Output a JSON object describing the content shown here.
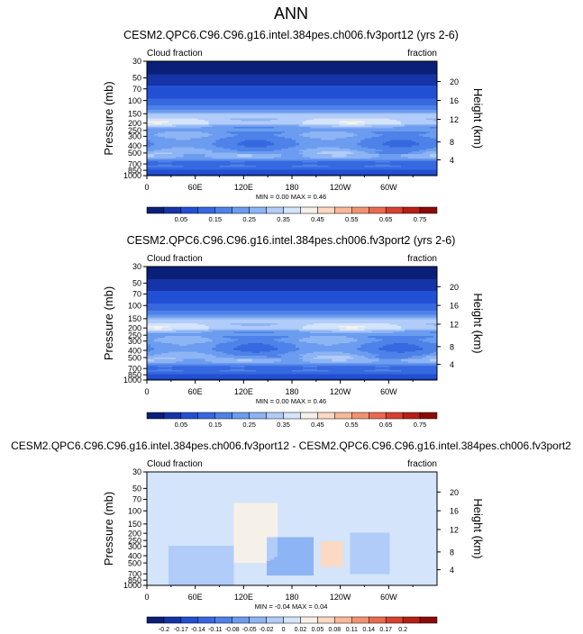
{
  "page_title": "ANN",
  "chart_data": [
    {
      "type": "heatmap",
      "title": "CESM2.QPC6.C96.C96.g16.intel.384pes.ch006.fv3port12 (yrs 2-6)",
      "left_label": "Cloud fraction",
      "right_label": "fraction",
      "ylabel": "Pressure (mb)",
      "ylabel_right": "Height (km)",
      "xticks": [
        "0",
        "60E",
        "120E",
        "180",
        "120W",
        "60W"
      ],
      "yticks": [
        "30",
        "50",
        "70",
        "100",
        "150",
        "200",
        "250",
        "300",
        "400",
        "500",
        "700",
        "850",
        "1000"
      ],
      "yticks_right": [
        "20",
        "16",
        "12",
        "8",
        "4"
      ],
      "minmax": "MIN =   0.00   MAX =   0.46",
      "colorbar_labels": [
        "0.05",
        "0.15",
        "0.25",
        "0.35",
        "0.45",
        "0.55",
        "0.65",
        "0.75"
      ],
      "colors": [
        "#0a1f78",
        "#1434a8",
        "#2250d4",
        "#3668e0",
        "#4e82e8",
        "#6b9cef",
        "#8db4f4",
        "#b1ccf8",
        "#d4e4fb",
        "#f6f1e8",
        "#fbd9c3",
        "#f8b899",
        "#f29273",
        "#e96a4f",
        "#d8412f",
        "#b81f14",
        "#8b0a08"
      ],
      "ylim": [
        30,
        1000
      ],
      "profile": [
        [
          30,
          0.0
        ],
        [
          40,
          0.02
        ],
        [
          55,
          0.04
        ],
        [
          85,
          0.08
        ],
        [
          100,
          0.12
        ],
        [
          120,
          0.16
        ],
        [
          140,
          0.22
        ],
        [
          150,
          0.3
        ],
        [
          180,
          0.34
        ],
        [
          200,
          0.36
        ],
        [
          220,
          0.26
        ],
        [
          250,
          0.2
        ],
        [
          290,
          0.24
        ],
        [
          330,
          0.2
        ],
        [
          380,
          0.18
        ],
        [
          420,
          0.2
        ],
        [
          470,
          0.24
        ],
        [
          510,
          0.26
        ],
        [
          540,
          0.28
        ],
        [
          580,
          0.26
        ],
        [
          620,
          0.2
        ],
        [
          650,
          0.14
        ],
        [
          700,
          0.13
        ],
        [
          750,
          0.15
        ],
        [
          800,
          0.12
        ],
        [
          850,
          0.1
        ],
        [
          890,
          0.08
        ],
        [
          930,
          0.06
        ],
        [
          970,
          0.04
        ],
        [
          1000,
          0.02
        ]
      ]
    },
    {
      "type": "heatmap",
      "title": "CESM2.QPC6.C96.C96.g16.intel.384pes.ch006.fv3port2 (yrs 2-6)",
      "left_label": "Cloud fraction",
      "right_label": "fraction",
      "ylabel": "Pressure (mb)",
      "ylabel_right": "Height (km)",
      "xticks": [
        "0",
        "60E",
        "120E",
        "180",
        "120W",
        "60W"
      ],
      "yticks": [
        "30",
        "50",
        "70",
        "100",
        "150",
        "200",
        "250",
        "300",
        "400",
        "500",
        "700",
        "850",
        "1000"
      ],
      "yticks_right": [
        "20",
        "16",
        "12",
        "8",
        "4"
      ],
      "minmax": "MIN =   0.00   MAX =   0.46",
      "colorbar_labels": [
        "0.05",
        "0.15",
        "0.25",
        "0.35",
        "0.45",
        "0.55",
        "0.65",
        "0.75"
      ],
      "colors": [
        "#0a1f78",
        "#1434a8",
        "#2250d4",
        "#3668e0",
        "#4e82e8",
        "#6b9cef",
        "#8db4f4",
        "#b1ccf8",
        "#d4e4fb",
        "#f6f1e8",
        "#fbd9c3",
        "#f8b899",
        "#f29273",
        "#e96a4f",
        "#d8412f",
        "#b81f14",
        "#8b0a08"
      ],
      "ylim": [
        30,
        1000
      ],
      "profile": [
        [
          30,
          0.0
        ],
        [
          40,
          0.02
        ],
        [
          55,
          0.04
        ],
        [
          85,
          0.08
        ],
        [
          100,
          0.12
        ],
        [
          120,
          0.16
        ],
        [
          140,
          0.22
        ],
        [
          150,
          0.3
        ],
        [
          180,
          0.34
        ],
        [
          200,
          0.36
        ],
        [
          220,
          0.26
        ],
        [
          250,
          0.2
        ],
        [
          290,
          0.24
        ],
        [
          330,
          0.2
        ],
        [
          380,
          0.18
        ],
        [
          420,
          0.2
        ],
        [
          470,
          0.24
        ],
        [
          510,
          0.26
        ],
        [
          540,
          0.28
        ],
        [
          580,
          0.26
        ],
        [
          620,
          0.2
        ],
        [
          650,
          0.14
        ],
        [
          700,
          0.13
        ],
        [
          750,
          0.15
        ],
        [
          800,
          0.12
        ],
        [
          850,
          0.1
        ],
        [
          890,
          0.08
        ],
        [
          930,
          0.06
        ],
        [
          970,
          0.04
        ],
        [
          1000,
          0.02
        ]
      ]
    },
    {
      "type": "heatmap",
      "title": "CESM2.QPC6.C96.C96.g16.intel.384pes.ch006.fv3port12 - CESM2.QPC6.C96.C96.g16.intel.384pes.ch006.fv3port2",
      "left_label": "Cloud fraction",
      "right_label": "fraction",
      "ylabel": "Pressure (mb)",
      "ylabel_right": "Height (km)",
      "xticks": [
        "0",
        "60E",
        "120E",
        "180",
        "120W",
        "60W"
      ],
      "yticks": [
        "30",
        "50",
        "70",
        "100",
        "150",
        "200",
        "250",
        "300",
        "400",
        "500",
        "700",
        "850",
        "1000"
      ],
      "yticks_right": [
        "20",
        "16",
        "12",
        "8",
        "4"
      ],
      "minmax": "MIN =  -0.04   MAX =   0.04",
      "colorbar_labels": [
        "-0.2",
        "-0.17",
        "-0.14",
        "-0.11",
        "-0.08",
        "-0.05",
        "-0.02",
        "0",
        "0.02",
        "0.05",
        "0.08",
        "0.11",
        "0.14",
        "0.17",
        "0.2"
      ],
      "colors": [
        "#0a1f78",
        "#1434a8",
        "#2250d4",
        "#3668e0",
        "#4e82e8",
        "#6b9cef",
        "#8db4f4",
        "#b1ccf8",
        "#d4e4fb",
        "#f6f1e8",
        "#fbd9c3",
        "#f8b899",
        "#f29273",
        "#e96a4f",
        "#d8412f",
        "#b81f14",
        "#8b0a08"
      ],
      "ylim": [
        30,
        1000
      ]
    }
  ]
}
